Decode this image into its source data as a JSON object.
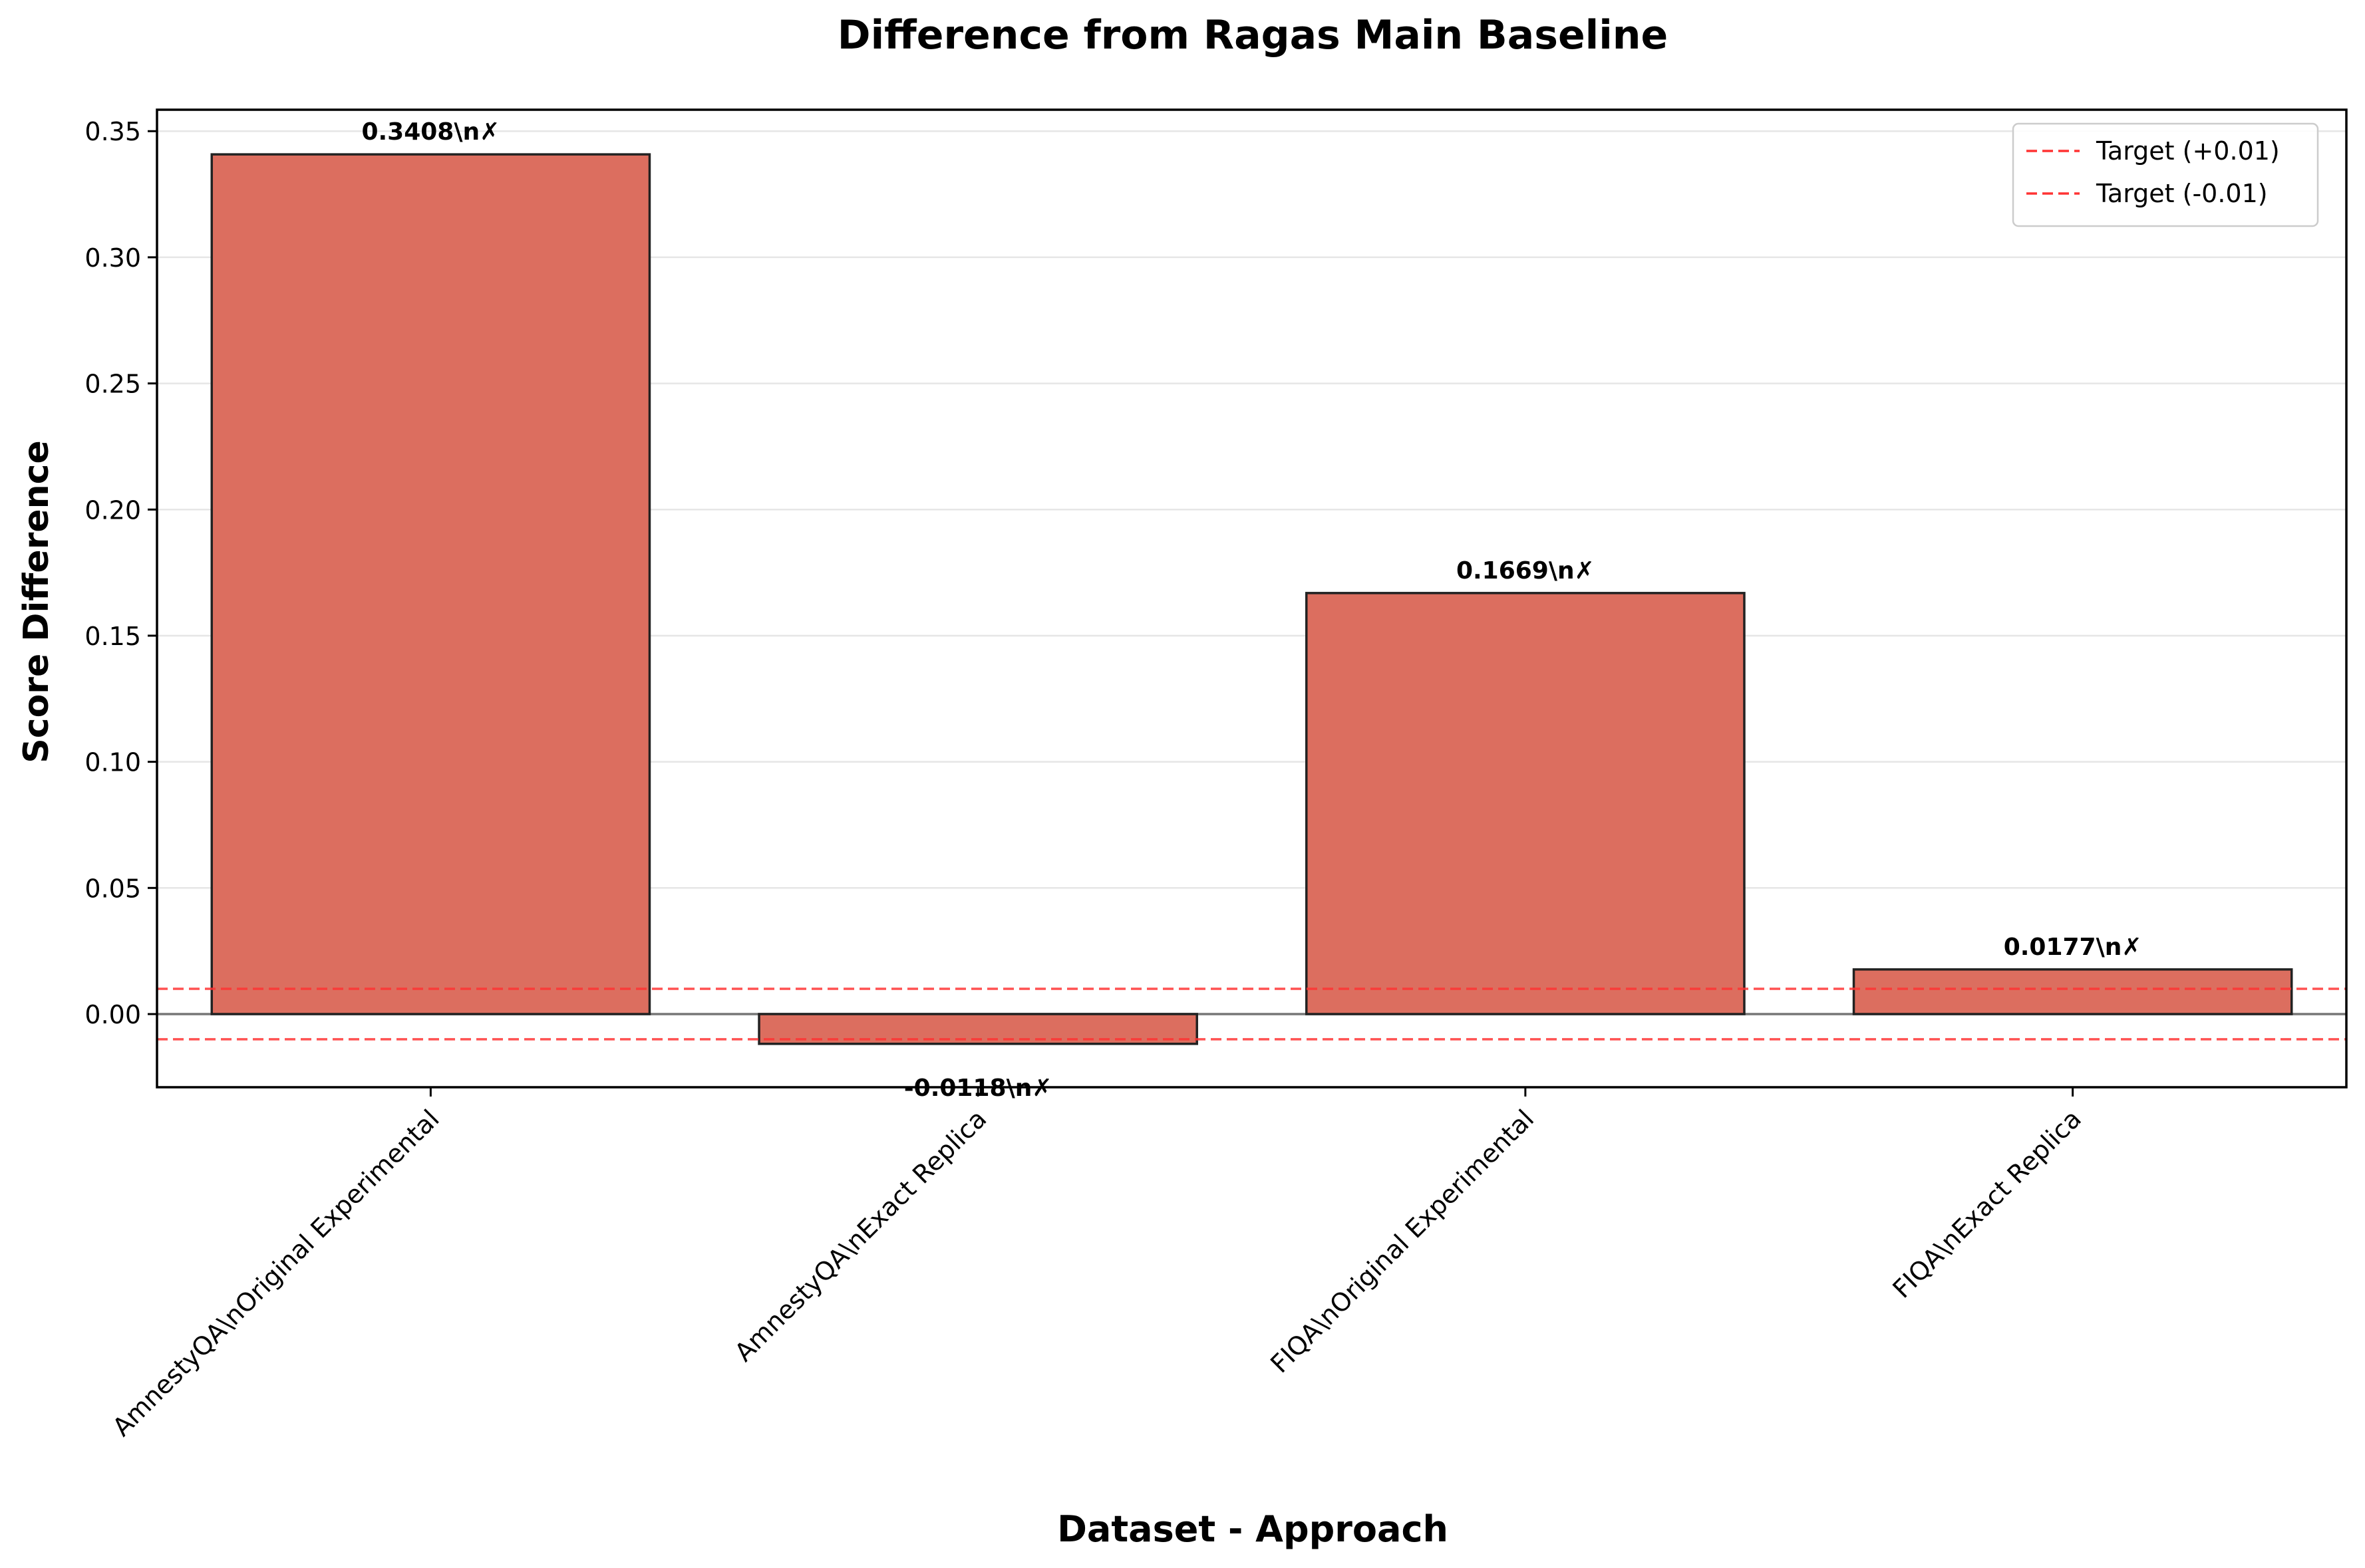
{
  "chart_data": {
    "type": "bar",
    "title": "Difference from Ragas Main Baseline",
    "xlabel": "Dataset - Approach",
    "ylabel": "Score Difference",
    "categories": [
      "AmnestyQA\\nOriginal Experimental",
      "AmnestyQA\\nExact Replica",
      "FIQA\\nOriginal Experimental",
      "FIQA\\nExact Replica"
    ],
    "values": [
      0.3408,
      -0.0118,
      0.1669,
      0.0177
    ],
    "data_labels": [
      "0.3408\\n✗",
      "-0.0118\\n✗",
      "0.1669\\n✗",
      "0.0177\\n✗"
    ],
    "ylim": [
      -0.029,
      0.3585
    ],
    "yticks": [
      0.0,
      0.05,
      0.1,
      0.15,
      0.2,
      0.25,
      0.3,
      0.35
    ],
    "ytick_labels": [
      "0.00",
      "0.05",
      "0.10",
      "0.15",
      "0.20",
      "0.25",
      "0.30",
      "0.35"
    ],
    "reference_lines": [
      {
        "label": "Target (+0.01)",
        "value": 0.01
      },
      {
        "label": "Target (-0.01)",
        "value": -0.01
      }
    ],
    "grid": "y",
    "legend_position": "top-right",
    "colors": {
      "bar": "#dc6e5f",
      "bar_edge": "#222222",
      "target_line": "#ff3333",
      "zero_line": "#777777",
      "grid": "#e6e6e6"
    }
  }
}
